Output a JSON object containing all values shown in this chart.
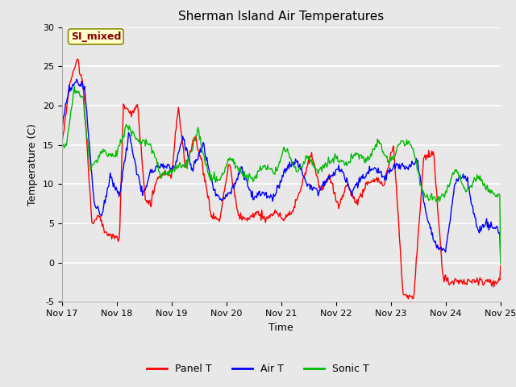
{
  "title": "Sherman Island Air Temperatures",
  "xlabel": "Time",
  "ylabel": "Temperature (C)",
  "ylim": [
    -5,
    30
  ],
  "xlim": [
    0,
    8
  ],
  "xtick_labels": [
    "Nov 17",
    "Nov 18",
    "Nov 19",
    "Nov 20",
    "Nov 21",
    "Nov 22",
    "Nov 23",
    "Nov 24",
    "Nov 25"
  ],
  "ytick_vals": [
    -5,
    0,
    5,
    10,
    15,
    20,
    25,
    30
  ],
  "annotation_text": "SI_mixed",
  "annotation_color": "#8B0000",
  "annotation_bg": "#FFFFCC",
  "annotation_edge": "#8B8B00",
  "line_colors": {
    "panel": "#FF0000",
    "air": "#0000FF",
    "sonic": "#00BB00"
  },
  "legend_labels": [
    "Panel T",
    "Air T",
    "Sonic T"
  ],
  "fig_bg": "#E8E8E8",
  "plot_bg": "#E8E8E8",
  "grid_color": "#FFFFFF",
  "line_width": 1.0,
  "title_fontsize": 11,
  "axis_label_fontsize": 9,
  "tick_fontsize": 8,
  "legend_fontsize": 9,
  "annot_fontsize": 9
}
